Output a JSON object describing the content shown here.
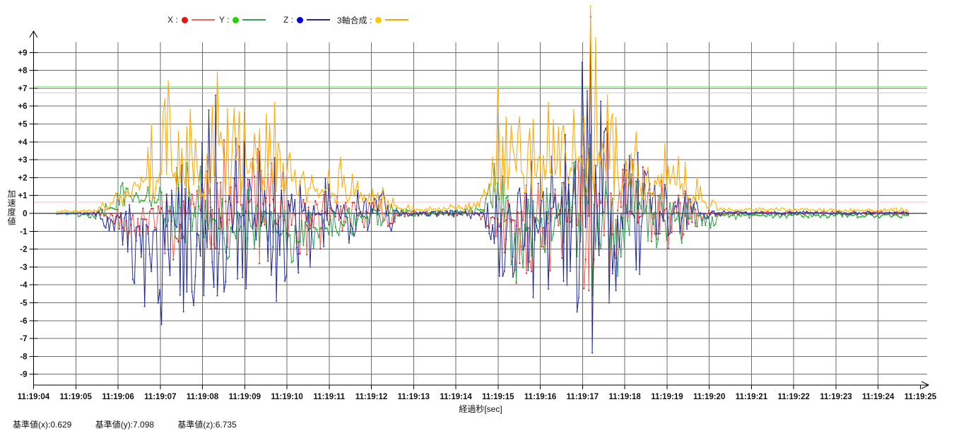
{
  "legend": {
    "items": [
      {
        "label": "X :",
        "dot_color": "#ee1111",
        "line_color": "#f4665a"
      },
      {
        "label": "Y :",
        "dot_color": "#22d400",
        "line_color": "#3a9b5c"
      },
      {
        "label": "Z :",
        "dot_color": "#0000dd",
        "line_color": "#232a8f"
      },
      {
        "label": "3軸合成 :",
        "dot_color": "#ffc800",
        "line_color": "#ffa500"
      }
    ]
  },
  "footer": {
    "baseline_x": "基準値(x):0.629",
    "baseline_y": "基準値(y):7.098",
    "baseline_z": "基準値(z):6.735"
  },
  "chart_data": {
    "type": "line",
    "title": "",
    "xlabel": "経過秒[sec]",
    "ylabel": "加速度値",
    "ylim": [
      -9,
      9
    ],
    "grid": true,
    "legend_position": "top",
    "x_tick_labels": [
      "11:19:04",
      "11:19:05",
      "11:19:06",
      "11:19:07",
      "11:19:08",
      "11:19:09",
      "11:19:10",
      "11:19:11",
      "11:19:12",
      "11:19:13",
      "11:19:14",
      "11:19:15",
      "11:19:16",
      "11:19:17",
      "11:19:18",
      "11:19:19",
      "11:19:20",
      "11:19:21",
      "11:19:22",
      "11:19:23",
      "11:19:24",
      "11:19:25"
    ],
    "y_tick_labels": [
      "+9",
      "+8",
      "+7",
      "+6",
      "+5",
      "+4",
      "+3",
      "+2",
      "+1",
      "0",
      "-1",
      "-2",
      "-3",
      "-4",
      "-5",
      "-6",
      "-7",
      "-8",
      "-9"
    ],
    "y_tick_values": [
      9,
      8,
      7,
      6,
      5,
      4,
      3,
      2,
      1,
      0,
      -1,
      -2,
      -3,
      -4,
      -5,
      -6,
      -7,
      -8,
      -9
    ],
    "reference_lines": [
      {
        "id": "baseline-x",
        "value": 0.629,
        "color": "#ffb8c8"
      },
      {
        "id": "baseline-y",
        "value": 7.098,
        "color": "#9ce89c"
      },
      {
        "id": "baseline-z",
        "value": 6.735,
        "color": "#aed9ec"
      }
    ],
    "sampling": {
      "rate_hz": 25,
      "t_start": 0.55,
      "t_end": 20.72,
      "t0_label": "11:19:04"
    },
    "envelope_format": "[t_seconds_after_11:19:04, mean, up_amplitude, down_amplitude]",
    "series": [
      {
        "name": "X",
        "line_color": "#f4665a",
        "marker_color": "#cc2020",
        "seed": 101,
        "envelope": [
          [
            0.55,
            0,
            0.04,
            0.04
          ],
          [
            1.45,
            0,
            0.06,
            0.06
          ],
          [
            1.8,
            -0.1,
            0.5,
            0.7
          ],
          [
            2.3,
            -0.4,
            0.9,
            1.5
          ],
          [
            3.0,
            -0.2,
            1.8,
            2.4
          ],
          [
            3.6,
            0,
            2.2,
            2.8
          ],
          [
            4.5,
            0.3,
            3.8,
            2.6
          ],
          [
            5.3,
            0.2,
            3.4,
            3.0
          ],
          [
            6.5,
            0,
            2.2,
            2.4
          ],
          [
            7.5,
            0,
            1.4,
            1.5
          ],
          [
            7.95,
            0,
            0.7,
            0.8
          ],
          [
            8.3,
            0,
            1.1,
            1.3
          ],
          [
            8.65,
            0,
            0.35,
            0.4
          ],
          [
            9.2,
            0,
            0.12,
            0.12
          ],
          [
            10.5,
            0,
            0.15,
            0.15
          ],
          [
            10.9,
            -0.3,
            0.8,
            1.8
          ],
          [
            11.4,
            -0.5,
            1.5,
            3.4
          ],
          [
            12.2,
            0,
            2.4,
            3.2
          ],
          [
            13.0,
            0,
            3.2,
            4.2
          ],
          [
            13.2,
            0,
            3.6,
            4.6
          ],
          [
            13.6,
            0.3,
            4.8,
            3.8
          ],
          [
            14.2,
            0,
            3.0,
            2.8
          ],
          [
            15.0,
            0,
            2.0,
            2.0
          ],
          [
            15.6,
            0,
            1.0,
            1.0
          ],
          [
            15.95,
            0,
            0.35,
            0.3
          ],
          [
            16.4,
            0.02,
            0.1,
            0.1
          ],
          [
            20.72,
            0.02,
            0.1,
            0.1
          ]
        ]
      },
      {
        "name": "Y",
        "line_color": "#3a9b5c",
        "marker_color": "#17b517",
        "seed": 202,
        "envelope": [
          [
            0.55,
            0,
            0.04,
            0.04
          ],
          [
            1.45,
            -0.05,
            0.1,
            0.3
          ],
          [
            1.9,
            0.5,
            1.0,
            0.4
          ],
          [
            2.4,
            1.0,
            1.0,
            0.6
          ],
          [
            3.0,
            0.5,
            2.0,
            1.3
          ],
          [
            3.6,
            0.2,
            2.8,
            2.0
          ],
          [
            4.5,
            -0.5,
            2.6,
            2.2
          ],
          [
            5.5,
            -1.0,
            1.8,
            1.8
          ],
          [
            6.2,
            -1.2,
            1.6,
            1.6
          ],
          [
            7.0,
            -0.8,
            1.2,
            1.2
          ],
          [
            7.6,
            -0.4,
            0.8,
            0.8
          ],
          [
            7.95,
            -0.1,
            0.5,
            0.5
          ],
          [
            8.3,
            0,
            0.7,
            0.9
          ],
          [
            8.65,
            0,
            0.3,
            0.35
          ],
          [
            9.2,
            0,
            0.12,
            0.15
          ],
          [
            10.5,
            0.1,
            0.3,
            0.3
          ],
          [
            10.95,
            0.8,
            2.4,
            0.8
          ],
          [
            11.4,
            -0.8,
            1.5,
            3.0
          ],
          [
            12.2,
            -0.3,
            2.2,
            2.6
          ],
          [
            13.2,
            0,
            4.4,
            4.6
          ],
          [
            13.8,
            -0.3,
            2.8,
            3.2
          ],
          [
            14.5,
            0,
            2.4,
            2.4
          ],
          [
            15.2,
            -0.2,
            1.4,
            1.6
          ],
          [
            15.8,
            -0.3,
            0.6,
            1.0
          ],
          [
            16.3,
            -0.12,
            0.15,
            0.25
          ],
          [
            17.0,
            -0.1,
            0.1,
            0.15
          ],
          [
            20.72,
            -0.1,
            0.1,
            0.15
          ]
        ]
      },
      {
        "name": "Z",
        "line_color": "#232a8f",
        "marker_color": "#2a3ed2",
        "seed": 303,
        "envelope": [
          [
            0.55,
            0,
            0.04,
            0.04
          ],
          [
            1.45,
            0,
            0.08,
            0.1
          ],
          [
            1.8,
            -0.2,
            0.5,
            1.0
          ],
          [
            2.2,
            -0.5,
            1.0,
            2.4
          ],
          [
            2.6,
            -1.0,
            1.6,
            4.2
          ],
          [
            3.0,
            -0.8,
            2.6,
            5.4
          ],
          [
            3.5,
            -0.5,
            3.2,
            5.0
          ],
          [
            4.3,
            0,
            6.6,
            4.6
          ],
          [
            5.0,
            0,
            4.0,
            4.2
          ],
          [
            5.7,
            -0.3,
            3.4,
            4.6
          ],
          [
            6.5,
            0,
            2.8,
            3.0
          ],
          [
            7.5,
            0,
            1.8,
            1.9
          ],
          [
            7.95,
            0,
            0.9,
            1.0
          ],
          [
            8.3,
            0,
            1.3,
            1.5
          ],
          [
            8.65,
            0,
            0.4,
            0.45
          ],
          [
            9.2,
            0,
            0.12,
            0.12
          ],
          [
            10.5,
            0,
            0.25,
            0.3
          ],
          [
            11.0,
            -0.3,
            1.8,
            3.2
          ],
          [
            11.8,
            -0.3,
            3.2,
            4.4
          ],
          [
            12.6,
            0,
            4.4,
            4.0
          ],
          [
            13.2,
            0,
            11.0,
            7.8
          ],
          [
            13.6,
            0,
            4.4,
            5.0
          ],
          [
            14.3,
            0,
            3.4,
            3.4
          ],
          [
            15.0,
            0,
            2.4,
            2.0
          ],
          [
            15.6,
            0,
            1.1,
            1.0
          ],
          [
            15.95,
            0,
            0.35,
            0.3
          ],
          [
            16.4,
            0.03,
            0.1,
            0.1
          ],
          [
            20.72,
            0.03,
            0.1,
            0.1
          ]
        ]
      },
      {
        "name": "3軸合成",
        "line_color": "#ffa500",
        "marker_color": "#ffc81e",
        "seed": 404,
        "envelope": [
          [
            0.55,
            0.1,
            0.06,
            0.05
          ],
          [
            1.45,
            0.15,
            0.1,
            0.08
          ],
          [
            1.8,
            0.5,
            0.5,
            0.3
          ],
          [
            2.3,
            1.4,
            1.3,
            0.9
          ],
          [
            2.8,
            2.0,
            3.0,
            1.3
          ],
          [
            3.2,
            2.4,
            5.0,
            1.6
          ],
          [
            3.7,
            2.4,
            3.4,
            1.6
          ],
          [
            4.35,
            2.5,
            5.4,
            1.7
          ],
          [
            5.0,
            2.3,
            3.4,
            1.5
          ],
          [
            5.7,
            2.0,
            4.2,
            1.4
          ],
          [
            6.5,
            1.7,
            2.7,
            1.2
          ],
          [
            7.5,
            1.1,
            1.7,
            0.8
          ],
          [
            7.95,
            0.6,
            0.8,
            0.45
          ],
          [
            8.3,
            0.7,
            0.9,
            0.5
          ],
          [
            8.65,
            0.3,
            0.3,
            0.2
          ],
          [
            9.2,
            0.2,
            0.1,
            0.08
          ],
          [
            10.5,
            0.3,
            0.4,
            0.2
          ],
          [
            11.0,
            2.4,
            4.6,
            1.6
          ],
          [
            11.5,
            2.4,
            3.0,
            1.6
          ],
          [
            12.2,
            2.4,
            3.8,
            1.6
          ],
          [
            12.8,
            2.4,
            3.4,
            1.6
          ],
          [
            13.2,
            3.0,
            8.6,
            2.0
          ],
          [
            13.6,
            2.4,
            4.2,
            1.6
          ],
          [
            14.3,
            2.1,
            2.7,
            1.4
          ],
          [
            15.0,
            1.7,
            2.2,
            1.1
          ],
          [
            15.5,
            1.3,
            1.6,
            0.85
          ],
          [
            15.95,
            0.5,
            0.5,
            0.3
          ],
          [
            16.4,
            0.2,
            0.12,
            0.1
          ],
          [
            20.72,
            0.18,
            0.12,
            0.1
          ]
        ]
      }
    ],
    "grid_color": "#6e6e6e",
    "axis_color": "#000000"
  }
}
